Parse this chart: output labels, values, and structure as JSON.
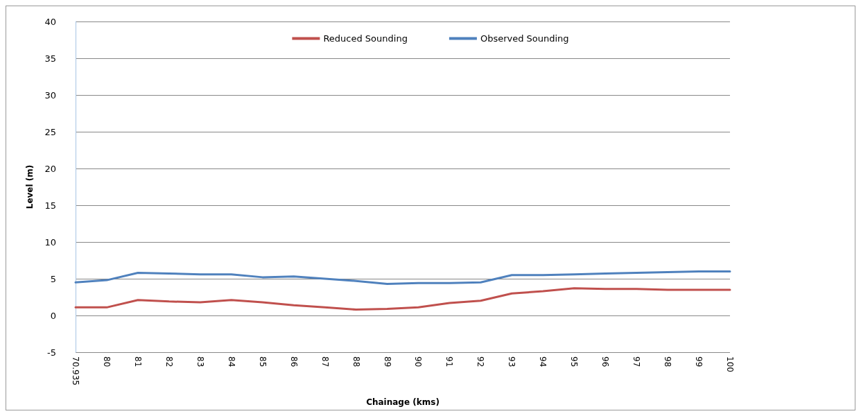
{
  "chart_data": {
    "type": "line",
    "xlabel": "Chainage (kms)",
    "ylabel": "Level (m)",
    "categories": [
      "70.935",
      "80",
      "81",
      "82",
      "83",
      "84",
      "85",
      "86",
      "87",
      "88",
      "89",
      "90",
      "91",
      "92",
      "93",
      "94",
      "95",
      "96",
      "97",
      "98",
      "99",
      "100"
    ],
    "series": [
      {
        "name": "Reduced Sounding",
        "color": "#c0504d",
        "values": [
          1.1,
          1.1,
          2.1,
          1.9,
          1.8,
          2.1,
          1.8,
          1.4,
          1.1,
          0.8,
          0.9,
          1.1,
          1.7,
          2.0,
          3.0,
          3.3,
          3.7,
          3.6,
          3.6,
          3.5,
          3.5,
          3.5
        ]
      },
      {
        "name": "Observed Sounding",
        "color": "#4f81bd",
        "values": [
          4.5,
          4.8,
          5.8,
          5.7,
          5.6,
          5.6,
          5.2,
          5.3,
          5.0,
          4.7,
          4.3,
          4.4,
          4.4,
          4.5,
          5.5,
          5.5,
          5.6,
          5.7,
          5.8,
          5.9,
          6.0,
          6.0
        ]
      }
    ],
    "ylim": [
      -5,
      40
    ],
    "yticks": [
      -5,
      0,
      5,
      10,
      15,
      20,
      25,
      30,
      35,
      40
    ],
    "grid": "y",
    "legend": "top",
    "marker": "none",
    "line_style": "solid"
  }
}
